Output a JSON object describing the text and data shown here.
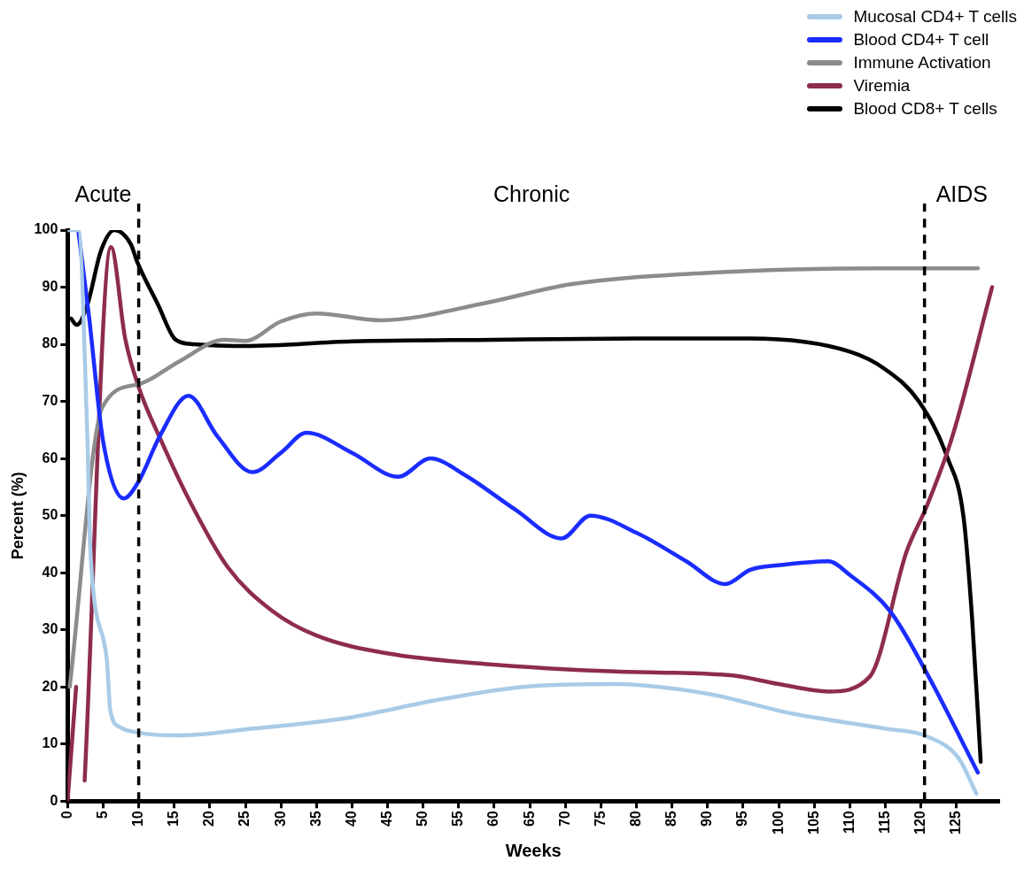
{
  "chart_data": {
    "type": "line",
    "xlabel": "Weeks",
    "ylabel": "Percent (%)",
    "xlim": [
      0,
      131
    ],
    "xticks": [
      0,
      5,
      10,
      15,
      20,
      25,
      30,
      35,
      40,
      45,
      50,
      55,
      60,
      65,
      70,
      75,
      80,
      85,
      90,
      95,
      100,
      105,
      110,
      115,
      120,
      125
    ],
    "ylim": [
      0,
      100
    ],
    "yticks": [
      0,
      10,
      20,
      30,
      40,
      50,
      60,
      70,
      80,
      90,
      100
    ],
    "grid": false,
    "legend": "top right",
    "marker": "none",
    "line_style": "solid",
    "ref_lines": [
      {
        "axis": "x",
        "value": 10,
        "line_style": "dashed",
        "color": "#000000"
      },
      {
        "axis": "x",
        "value": 120.5,
        "line_style": "dashed",
        "color": "#000000"
      }
    ],
    "annotations": [
      "Acute",
      "Chronic",
      "AIDS"
    ],
    "series": [
      {
        "name": "Mucosal CD4+ T cells",
        "color": "#a8cbe8",
        "x": [
          0,
          1.5,
          2.8,
          3.2,
          5.5,
          6,
          7.3,
          10,
          15.5,
          26,
          39,
          52,
          64,
          77,
          90,
          102,
          115,
          120.7,
          125.3,
          127.8
        ],
        "values": [
          100,
          100,
          63,
          44,
          25,
          16,
          13,
          12,
          11.5,
          12.7,
          14.5,
          17.7,
          20,
          20.5,
          18.8,
          15.3,
          12.7,
          11.4,
          7.5,
          1.3
        ]
      },
      {
        "name": "Blood CD4+ T cell",
        "color": "#1a2cff",
        "x": [
          1.5,
          3,
          5,
          7.9,
          10,
          13,
          17,
          21,
          26,
          30,
          33.6,
          40,
          46.5,
          51,
          56,
          63,
          69.5,
          73.5,
          80,
          87,
          92.5,
          96,
          100,
          107,
          110,
          115.7,
          121,
          128
        ],
        "values": [
          100,
          85,
          63,
          53,
          56,
          64,
          71,
          64,
          57.6,
          61,
          64.5,
          61,
          56.8,
          60,
          57,
          51,
          46,
          50,
          47,
          42,
          38,
          40.5,
          41.3,
          42,
          39.6,
          33.2,
          22,
          5
        ]
      },
      {
        "name": "Immune Activation",
        "color": "#8c8c8c",
        "x": [
          0.3,
          4.9,
          10,
          15.7,
          22,
          25,
          30,
          35,
          44,
          59,
          70.7,
          89.7,
          115,
          128
        ],
        "values": [
          20,
          69,
          73,
          77,
          80.8,
          80.6,
          84,
          85.4,
          84.2,
          87.3,
          90.5,
          92.5,
          93.3,
          93.3
        ]
      },
      {
        "name": "Viremia",
        "color": "#8e2c4c",
        "x": [
          0,
          1.2,
          1.7,
          2.4,
          6.1,
          8.1,
          10,
          13.2,
          17.4,
          22.5,
          28.8,
          35,
          45.3,
          59,
          77,
          93.5,
          100,
          107,
          112.8,
          118,
          120.8,
          124.4,
          130
        ],
        "values": [
          0,
          20,
          null,
          3.6,
          97,
          81,
          72.5,
          63,
          52,
          41,
          33.3,
          29,
          25.8,
          24,
          22.7,
          22,
          20.5,
          19.2,
          21.8,
          43.8,
          51.6,
          63.8,
          90
        ]
      },
      {
        "name": "Blood CD8+ T cells",
        "color": "#000000",
        "x": [
          0.5,
          1.3,
          2.8,
          4.7,
          6.6,
          8.9,
          9.8,
          12.7,
          15.2,
          17.8,
          25,
          40,
          60,
          80,
          96,
          110,
          115,
          119.7,
          123.7,
          126,
          127.2,
          128.4
        ],
        "values": [
          84.5,
          83.4,
          87,
          96.4,
          100,
          97.5,
          94.4,
          87,
          80.8,
          80,
          79.7,
          80.5,
          80.8,
          81,
          81,
          78.7,
          75.6,
          70,
          60.2,
          49.6,
          31.8,
          6.9
        ]
      }
    ]
  }
}
